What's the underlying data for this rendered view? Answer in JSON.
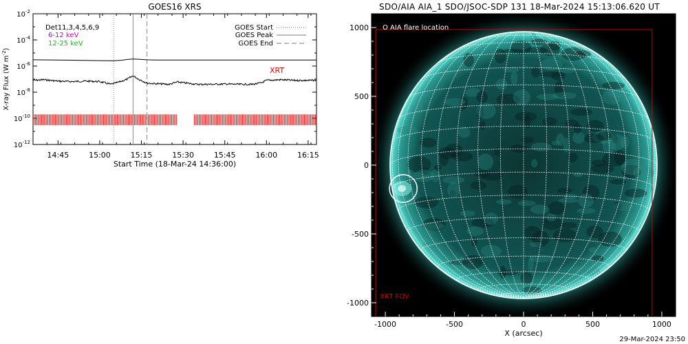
{
  "footer_timestamp": "29-Mar-2024 23:50",
  "colors": {
    "det_label": "#000000",
    "band_6_12": "#cc00cc",
    "band_12_25": "#00cc00",
    "xrt": "#dd0000",
    "fov_box": "#cc0000",
    "sun_base": "#0a3a38",
    "sun_limb": "#4fd8cc",
    "grid": "#ffffff"
  },
  "chart_data": [
    {
      "type": "line",
      "title": "GOES16 XRS",
      "xlabel": "Start Time (18-Mar-24 14:36:00)",
      "ylabel": "X-ray Flux (W m⁻²)",
      "ylabel_main": "X-ray Flux (W m",
      "ylabel_sup": "-2",
      "ylabel_close": ")",
      "xlim": [
        "14:36",
        "16:18"
      ],
      "ylim": [
        1e-12,
        0.01
      ],
      "yscale": "log",
      "x_tick_labels": [
        "14:45",
        "15:00",
        "15:15",
        "15:30",
        "15:45",
        "16:00",
        "16:15"
      ],
      "y_tick_labels": [
        {
          "base": "10",
          "exp": "-2"
        },
        {
          "base": "10",
          "exp": "-4"
        },
        {
          "base": "10",
          "exp": "-6"
        },
        {
          "base": "10",
          "exp": "-8"
        },
        {
          "base": "10",
          "exp": "-10"
        },
        {
          "base": "10",
          "exp": "-12"
        }
      ],
      "legend_top_left": [
        "Det11,3,4,5,6,9",
        "6-12 keV",
        "12-25 keV"
      ],
      "legend_top_right": [
        {
          "name": "GOES Start",
          "style": "dotted"
        },
        {
          "name": "GOES Peak",
          "style": "solid"
        },
        {
          "name": "GOES End",
          "style": "dashed"
        }
      ],
      "goes_event_times": {
        "start": "15:05",
        "peak": "15:12",
        "end": "15:17"
      },
      "xrt_label": "XRT",
      "xrt_coverage": [
        [
          "14:36",
          "15:28"
        ],
        [
          "15:34",
          "16:18"
        ]
      ],
      "series": [
        {
          "style": "solid",
          "x": [
            "14:36",
            "14:50",
            "15:00",
            "15:05",
            "15:08",
            "15:10",
            "15:12",
            "15:14",
            "15:17",
            "15:20",
            "15:25",
            "15:30",
            "15:40",
            "15:50",
            "16:00",
            "16:10",
            "16:18"
          ],
          "y": [
            3e-06,
            2.8e-06,
            2.6e-06,
            2.5e-06,
            2.8e-06,
            3.2e-06,
            3.5e-06,
            3.3e-06,
            3e-06,
            2.9e-06,
            2.9e-06,
            2.9e-06,
            2.9e-06,
            2.9e-06,
            2.9e-06,
            2.9e-06,
            2.9e-06
          ]
        },
        {
          "style": "solid-noisy",
          "x": [
            "14:36",
            "14:40",
            "14:45",
            "14:50",
            "14:55",
            "15:00",
            "15:04",
            "15:07",
            "15:10",
            "15:12",
            "15:14",
            "15:17",
            "15:20",
            "15:25",
            "15:28",
            "15:31",
            "15:35",
            "15:40",
            "15:45",
            "15:50",
            "15:55",
            "15:58",
            "16:00",
            "16:05",
            "16:10",
            "16:18"
          ],
          "y": [
            8e-08,
            9e-08,
            7e-08,
            6.5e-08,
            7e-08,
            6.5e-08,
            4e-08,
            6e-08,
            1e-07,
            1.8e-07,
            1e-07,
            5e-08,
            4.5e-08,
            4e-08,
            6e-08,
            5e-08,
            4e-08,
            4e-08,
            4.2e-08,
            4e-08,
            4e-08,
            5e-08,
            8e-08,
            9e-08,
            8e-08,
            8e-08
          ]
        }
      ]
    },
    {
      "type": "image",
      "title": "SDO/AIA AIA_1 SDO/JSOC-SDP 131 18-Mar-2024 15:13:06.620 UT",
      "xlabel": "X (arcsec)",
      "xlim": [
        -1100,
        1100
      ],
      "ylim": [
        -1100,
        1100
      ],
      "x_tick_labels": [
        "-1000",
        "-500",
        "0",
        "500",
        "1000"
      ],
      "y_tick_labels": [
        "1000",
        "500",
        "0",
        "-500",
        "-1000"
      ],
      "legend_top": "O AIA flare location",
      "fov_label": "XRT FOV",
      "xrt_fov_x": [
        -1070,
        930
      ],
      "xrt_fov_y": [
        -1100,
        985
      ],
      "flare_location_arcsec": [
        -870,
        -170
      ],
      "flare_circle_radius_arcsec": 100,
      "solar_radius_arcsec": 965,
      "grid_spacing_deg": 10
    }
  ]
}
